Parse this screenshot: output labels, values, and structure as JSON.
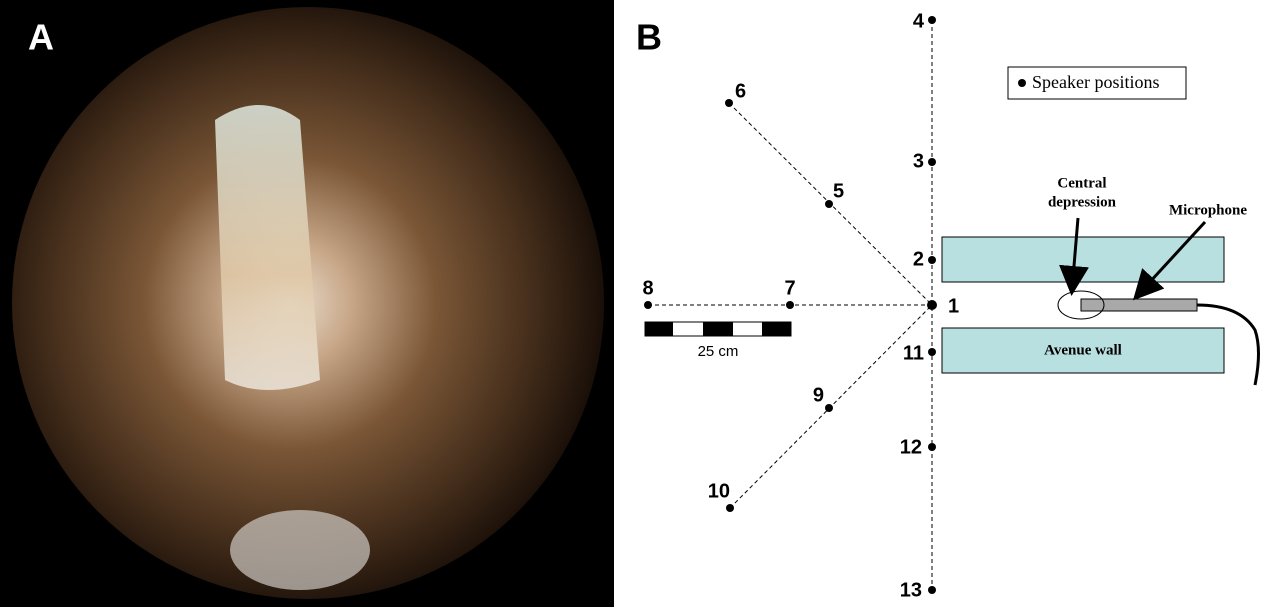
{
  "panel_a": {
    "label": "A"
  },
  "panel_b": {
    "label": "B",
    "positions": [
      "1",
      "2",
      "3",
      "4",
      "5",
      "6",
      "7",
      "8",
      "9",
      "10",
      "11",
      "12",
      "13"
    ],
    "legend": "Speaker positions",
    "central_depression": [
      "Central",
      "depression"
    ],
    "microphone": "Microphone",
    "avenue_wall": "Avenue wall",
    "scale": "25 cm"
  }
}
